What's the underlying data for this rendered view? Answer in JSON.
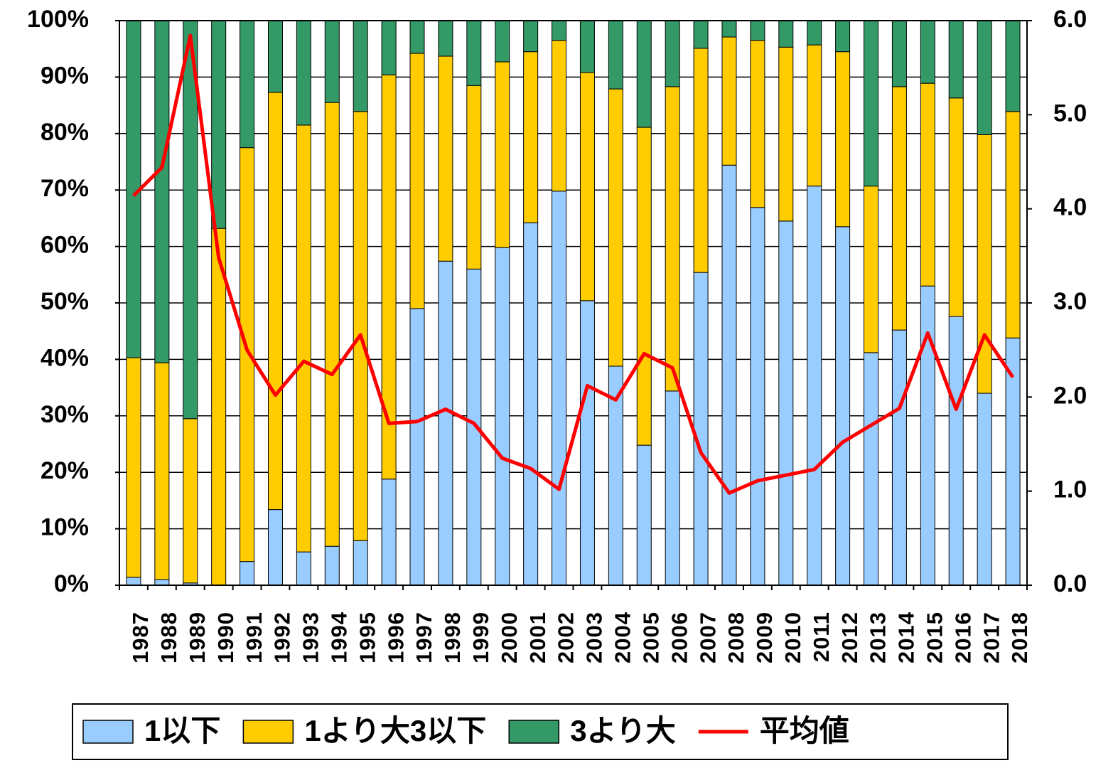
{
  "chart_data": {
    "type": "bar",
    "stacked": true,
    "categories": [
      "1987",
      "1988",
      "1989",
      "1990",
      "1991",
      "1992",
      "1993",
      "1994",
      "1995",
      "1996",
      "1997",
      "1998",
      "1999",
      "2000",
      "2001",
      "2002",
      "2003",
      "2004",
      "2005",
      "2006",
      "2007",
      "2008",
      "2009",
      "2010",
      "2011",
      "2012",
      "2013",
      "2014",
      "2015",
      "2016",
      "2017",
      "2018"
    ],
    "series": [
      {
        "name": "1以下",
        "color": "#99ccff",
        "type": "bar",
        "values": [
          1.4,
          1.0,
          0.4,
          0,
          4.2,
          13.4,
          5.9,
          6.9,
          7.9,
          18.8,
          49.0,
          57.4,
          56.0,
          59.8,
          64.2,
          69.8,
          50.4,
          38.8,
          24.8,
          34.4,
          55.4,
          74.4,
          66.9,
          64.5,
          70.7,
          63.5,
          41.2,
          45.2,
          53.0,
          47.6,
          34.0,
          43.8
        ]
      },
      {
        "name": "1より大3以下",
        "color": "#ffcc00",
        "type": "bar",
        "values": [
          38.9,
          38.4,
          29.1,
          63.2,
          73.3,
          73.9,
          75.6,
          78.6,
          76.0,
          71.6,
          45.2,
          36.3,
          32.5,
          32.9,
          30.3,
          26.7,
          40.4,
          49.1,
          56.3,
          53.9,
          39.7,
          22.7,
          29.6,
          30.8,
          25.0,
          31.0,
          29.5,
          43.1,
          35.9,
          38.7,
          45.8,
          40.1
        ]
      },
      {
        "name": "3より大",
        "color": "#339966",
        "type": "bar",
        "values": [
          59.7,
          60.6,
          70.5,
          36.8,
          22.5,
          12.7,
          18.5,
          14.5,
          16.1,
          9.6,
          5.8,
          6.3,
          11.5,
          7.3,
          5.5,
          3.5,
          9.2,
          12.1,
          18.9,
          11.7,
          4.9,
          2.9,
          3.5,
          4.7,
          4.3,
          5.5,
          29.3,
          11.7,
          11.1,
          13.7,
          20.2,
          16.1
        ]
      },
      {
        "name": "平均値",
        "color": "#ff0000",
        "type": "line",
        "axis": "y2",
        "values": [
          4.14,
          4.44,
          5.84,
          3.48,
          2.5,
          2.02,
          2.38,
          2.24,
          2.66,
          1.72,
          1.74,
          1.87,
          1.72,
          1.35,
          1.24,
          1.02,
          2.12,
          1.97,
          2.46,
          2.31,
          1.41,
          0.98,
          1.11,
          1.17,
          1.23,
          1.52,
          1.7,
          1.88,
          2.68,
          1.87,
          2.66,
          2.21
        ]
      }
    ],
    "ylim": [
      0,
      100
    ],
    "yticks": [
      {
        "value": 0,
        "label": "0%"
      },
      {
        "value": 10,
        "label": "10%"
      },
      {
        "value": 20,
        "label": "20%"
      },
      {
        "value": 30,
        "label": "30%"
      },
      {
        "value": 40,
        "label": "40%"
      },
      {
        "value": 50,
        "label": "50%"
      },
      {
        "value": 60,
        "label": "60%"
      },
      {
        "value": 70,
        "label": "70%"
      },
      {
        "value": 80,
        "label": "80%"
      },
      {
        "value": 90,
        "label": "90%"
      },
      {
        "value": 100,
        "label": "100%"
      }
    ],
    "y2lim": [
      0,
      6
    ],
    "y2ticks": [
      {
        "value": 0,
        "label": "0.0"
      },
      {
        "value": 1,
        "label": "1.0"
      },
      {
        "value": 2,
        "label": "2.0"
      },
      {
        "value": 3,
        "label": "3.0"
      },
      {
        "value": 4,
        "label": "4.0"
      },
      {
        "value": 5,
        "label": "5.0"
      },
      {
        "value": 6,
        "label": "6.0"
      }
    ],
    "grid": true,
    "legend": "bottom"
  }
}
